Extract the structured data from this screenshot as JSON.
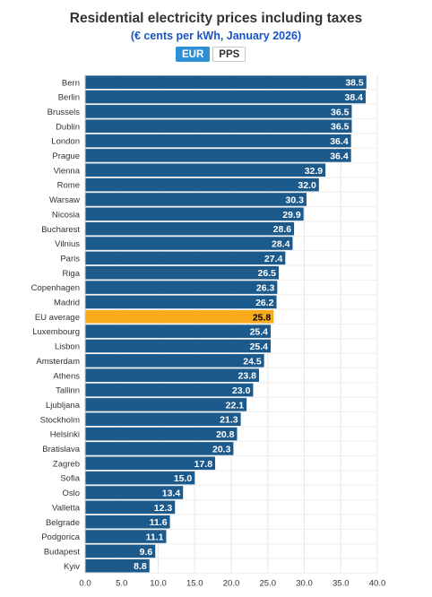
{
  "header": {
    "title": "Residential electricity prices including taxes",
    "subtitle": "(€ cents per kWh, January 2026)",
    "toggle_eur": "EUR",
    "toggle_pps": "PPS"
  },
  "colors": {
    "bar": "#1d5a8c",
    "highlight": "#f7ab1b",
    "subtitle": "#1a55c4",
    "toggle_active": "#2d8fd5"
  },
  "chart_data": {
    "type": "bar",
    "orientation": "horizontal",
    "title": "Residential electricity prices including taxes",
    "subtitle": "(€ cents per kWh, January 2026)",
    "categories": [
      "Bern",
      "Berlin",
      "Brussels",
      "Dublin",
      "London",
      "Prague",
      "Vienna",
      "Rome",
      "Warsaw",
      "Nicosia",
      "Bucharest",
      "Vilnius",
      "Paris",
      "Riga",
      "Copenhagen",
      "Madrid",
      "EU average",
      "Luxembourg",
      "Lisbon",
      "Amsterdam",
      "Athens",
      "Tallinn",
      "Ljubljana",
      "Stockholm",
      "Helsinki",
      "Bratislava",
      "Zagreb",
      "Sofia",
      "Oslo",
      "Valletta",
      "Belgrade",
      "Podgorica",
      "Budapest",
      "Kyiv"
    ],
    "values": [
      38.5,
      38.4,
      36.5,
      36.5,
      36.4,
      36.4,
      32.9,
      32.0,
      30.3,
      29.9,
      28.6,
      28.4,
      27.4,
      26.5,
      26.3,
      26.2,
      25.8,
      25.4,
      25.4,
      24.5,
      23.8,
      23.0,
      22.1,
      21.3,
      20.8,
      20.3,
      17.8,
      15.0,
      13.4,
      12.3,
      11.6,
      11.1,
      9.6,
      8.8
    ],
    "value_labels": [
      "38.5",
      "38.4",
      "36.5",
      "36.5",
      "36.4",
      "36.4",
      "32.9",
      "32.0",
      "30.3",
      "29.9",
      "28.6",
      "28.4",
      "27.4",
      "26.5",
      "26.3",
      "26.2",
      "25.8",
      "25.4",
      "25.4",
      "24.5",
      "23.8",
      "23.0",
      "22.1",
      "21.3",
      "20.8",
      "20.3",
      "17.8",
      "15.0",
      "13.4",
      "12.3",
      "11.6",
      "11.1",
      "9.6",
      "8.8"
    ],
    "highlight_category": "EU average",
    "xlim": [
      0,
      40
    ],
    "xticks": [
      "0.0",
      "5.0",
      "10.0",
      "15.0",
      "20.0",
      "25.0",
      "30.0",
      "35.0",
      "40.0"
    ],
    "grid": true
  }
}
